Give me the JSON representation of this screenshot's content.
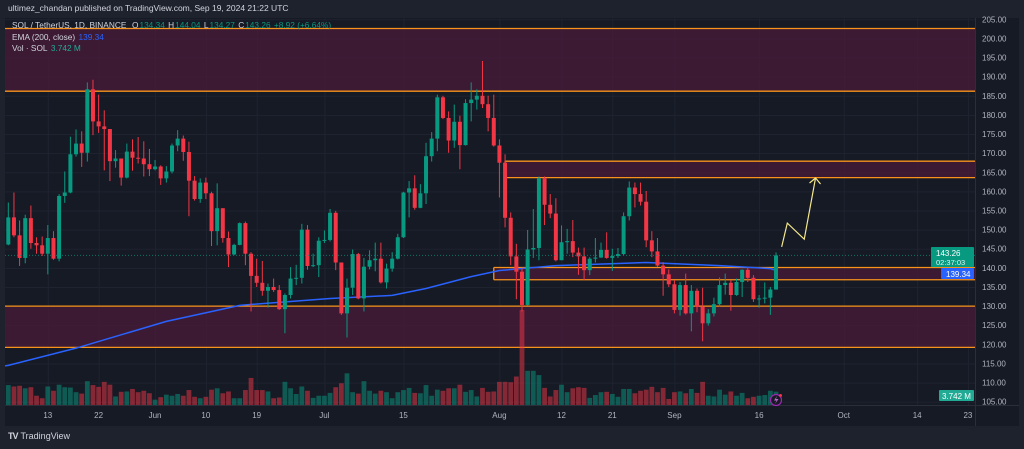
{
  "header": {
    "publisher_line": "ultimez_chandan published on TradingView.com, Sep 19, 2024 21:22 UTC"
  },
  "legend": {
    "symbol": "SOL / TetherUS, 1D, BINANCE",
    "o_label": "O",
    "o": "134.34",
    "h_label": "H",
    "h": "144.04",
    "l_label": "L",
    "l": "134.27",
    "c_label": "C",
    "c": "143.26",
    "change": "+8.92 (+6.64%)",
    "ema_label": "EMA (200, close)",
    "ema_value": "139.34",
    "vol_label": "Vol · SOL",
    "vol_value": "3.742 M"
  },
  "price_tags": {
    "last": "143.26",
    "countdown": "02:37:03",
    "ema": "139.34",
    "volume": "3.742 M"
  },
  "footer": {
    "logo_mark": "TV",
    "logo_text": "TradingView"
  },
  "icons": {
    "alert": "lightning-icon"
  },
  "colors": {
    "up": "#089981",
    "down": "#f23645",
    "ema": "#2962ff",
    "zone_border": "#f7931a",
    "zone_fill": "#4a1b3a",
    "projection": "#f5e88c",
    "background": "#161a25"
  },
  "chart_data": {
    "type": "candlestick",
    "interval": "1D",
    "ylim": [
      103,
      206
    ],
    "grid": true,
    "y_ticks": [
      205,
      200,
      195,
      190,
      185,
      180,
      175,
      170,
      165,
      160,
      155,
      150,
      145,
      140,
      135,
      130,
      125,
      120,
      115,
      110,
      105
    ],
    "y_tick_labels": [
      "205.00",
      "200.00",
      "195.00",
      "190.00",
      "185.00",
      "180.00",
      "175.00",
      "170.00",
      "165.00",
      "160.00",
      "155.00",
      "150.00",
      "145.00",
      "140.00",
      "135.00",
      "130.00",
      "125.00",
      "120.00",
      "115.00",
      "110.00",
      "105.00"
    ],
    "x_ticks": [
      {
        "label": "13",
        "date": "2024-05-13"
      },
      {
        "label": "22",
        "date": "2024-05-22"
      },
      {
        "label": "Jun",
        "date": "2024-06-01"
      },
      {
        "label": "10",
        "date": "2024-06-10"
      },
      {
        "label": "19",
        "date": "2024-06-19"
      },
      {
        "label": "Jul",
        "date": "2024-07-01"
      },
      {
        "label": "15",
        "date": "2024-07-15"
      },
      {
        "label": "Aug",
        "date": "2024-08-01"
      },
      {
        "label": "12",
        "date": "2024-08-12"
      },
      {
        "label": "21",
        "date": "2024-08-21"
      },
      {
        "label": "Sep",
        "date": "2024-09-01"
      },
      {
        "label": "16",
        "date": "2024-09-16"
      },
      {
        "label": "Oct",
        "date": "2024-10-01"
      },
      {
        "label": "14",
        "date": "2024-10-14"
      },
      {
        "label": "23",
        "date": "2024-10-23"
      }
    ],
    "candle_fields": [
      "date",
      "open",
      "high",
      "low",
      "close",
      "volume_m"
    ],
    "candles": [
      [
        "2024-05-06",
        146.1,
        157.1,
        145.9,
        153.2,
        5.6
      ],
      [
        "2024-05-07",
        153.2,
        159.7,
        148.0,
        148.5,
        5.2
      ],
      [
        "2024-05-08",
        148.5,
        152.4,
        140.5,
        142.6,
        5.4
      ],
      [
        "2024-05-09",
        142.6,
        153.9,
        141.2,
        153.0,
        4.7
      ],
      [
        "2024-05-10",
        153.0,
        156.3,
        145.0,
        146.5,
        5.0
      ],
      [
        "2024-05-11",
        146.5,
        148.0,
        143.7,
        145.9,
        2.6
      ],
      [
        "2024-05-12",
        145.9,
        148.2,
        143.1,
        143.7,
        1.9
      ],
      [
        "2024-05-13",
        143.7,
        151.2,
        138.3,
        147.8,
        5.2
      ],
      [
        "2024-05-14",
        147.8,
        149.6,
        142.1,
        142.4,
        4.0
      ],
      [
        "2024-05-15",
        142.4,
        159.3,
        141.7,
        158.8,
        5.7
      ],
      [
        "2024-05-16",
        158.8,
        165.2,
        157.0,
        159.7,
        5.0
      ],
      [
        "2024-05-17",
        159.7,
        174.3,
        159.5,
        169.7,
        4.9
      ],
      [
        "2024-05-18",
        169.7,
        176.2,
        169.1,
        172.5,
        3.6
      ],
      [
        "2024-05-19",
        172.5,
        175.7,
        166.4,
        170.1,
        3.2
      ],
      [
        "2024-05-20",
        170.1,
        188.5,
        167.8,
        186.7,
        6.7
      ],
      [
        "2024-05-21",
        186.7,
        189.2,
        174.7,
        178.3,
        5.6
      ],
      [
        "2024-05-22",
        178.3,
        185.3,
        175.3,
        177.0,
        5.1
      ],
      [
        "2024-05-23",
        177.0,
        181.2,
        165.5,
        176.3,
        6.5
      ],
      [
        "2024-05-24",
        176.3,
        176.3,
        162.7,
        167.9,
        5.7
      ],
      [
        "2024-05-25",
        167.9,
        170.8,
        166.2,
        168.6,
        2.4
      ],
      [
        "2024-05-26",
        168.6,
        168.6,
        161.5,
        163.6,
        3.7
      ],
      [
        "2024-05-27",
        163.6,
        172.5,
        163.4,
        170.4,
        3.8
      ],
      [
        "2024-05-28",
        170.4,
        173.6,
        165.4,
        168.8,
        4.5
      ],
      [
        "2024-05-29",
        168.8,
        174.2,
        167.3,
        168.6,
        3.6
      ],
      [
        "2024-05-30",
        168.6,
        173.1,
        163.9,
        167.1,
        4.0
      ],
      [
        "2024-05-31",
        167.1,
        171.1,
        164.0,
        165.8,
        3.3
      ],
      [
        "2024-06-01",
        165.8,
        168.2,
        165.5,
        166.5,
        1.5
      ],
      [
        "2024-06-02",
        166.5,
        166.8,
        161.7,
        163.4,
        2.2
      ],
      [
        "2024-06-03",
        163.4,
        166.6,
        162.3,
        165.2,
        2.9
      ],
      [
        "2024-06-04",
        165.2,
        172.5,
        164.7,
        172.0,
        2.6
      ],
      [
        "2024-06-05",
        172.0,
        176.0,
        170.5,
        173.8,
        3.1
      ],
      [
        "2024-06-06",
        173.8,
        174.6,
        168.0,
        170.3,
        2.6
      ],
      [
        "2024-06-07",
        170.3,
        173.0,
        153.5,
        162.8,
        4.2
      ],
      [
        "2024-06-08",
        162.8,
        164.0,
        157.6,
        158.0,
        2.3
      ],
      [
        "2024-06-09",
        158.0,
        163.4,
        157.0,
        162.3,
        1.9
      ],
      [
        "2024-06-10",
        162.3,
        163.6,
        158.0,
        159.5,
        2.3
      ],
      [
        "2024-06-11",
        159.5,
        159.9,
        145.7,
        149.6,
        4.3
      ],
      [
        "2024-06-12",
        149.6,
        162.1,
        145.9,
        155.6,
        4.7
      ],
      [
        "2024-06-13",
        155.6,
        155.6,
        146.6,
        147.8,
        3.3
      ],
      [
        "2024-06-14",
        147.8,
        149.5,
        140.2,
        143.5,
        3.8
      ],
      [
        "2024-06-15",
        143.5,
        146.3,
        143.3,
        146.0,
        1.9
      ],
      [
        "2024-06-16",
        146.0,
        151.9,
        145.9,
        151.7,
        1.9
      ],
      [
        "2024-06-17",
        151.7,
        152.1,
        140.7,
        143.7,
        4.2
      ],
      [
        "2024-06-18",
        143.7,
        144.1,
        128.6,
        137.9,
        7.6
      ],
      [
        "2024-06-19",
        137.9,
        142.4,
        135.0,
        136.1,
        4.2
      ],
      [
        "2024-06-20",
        136.1,
        141.8,
        132.7,
        134.0,
        4.2
      ],
      [
        "2024-06-21",
        134.0,
        135.9,
        129.6,
        135.0,
        3.8
      ],
      [
        "2024-06-22",
        135.0,
        137.2,
        133.7,
        134.2,
        1.9
      ],
      [
        "2024-06-23",
        134.2,
        135.5,
        129.0,
        129.2,
        2.1
      ],
      [
        "2024-06-24",
        129.2,
        133.3,
        122.9,
        132.9,
        6.5
      ],
      [
        "2024-06-25",
        132.9,
        140.2,
        132.0,
        137.2,
        4.7
      ],
      [
        "2024-06-26",
        137.2,
        140.8,
        135.5,
        137.4,
        3.1
      ],
      [
        "2024-06-27",
        137.4,
        151.5,
        135.9,
        150.0,
        5.2
      ],
      [
        "2024-06-28",
        150.0,
        151.2,
        139.5,
        140.5,
        4.0
      ],
      [
        "2024-06-29",
        140.5,
        143.7,
        140.2,
        140.7,
        2.0
      ],
      [
        "2024-06-30",
        140.7,
        148.0,
        137.6,
        147.1,
        2.6
      ],
      [
        "2024-07-01",
        147.1,
        149.8,
        146.5,
        147.3,
        2.6
      ],
      [
        "2024-07-02",
        147.3,
        155.4,
        146.9,
        154.4,
        3.4
      ],
      [
        "2024-07-03",
        154.4,
        154.9,
        139.4,
        141.4,
        5.0
      ],
      [
        "2024-07-04",
        141.4,
        141.4,
        127.7,
        128.1,
        6.1
      ],
      [
        "2024-07-05",
        128.1,
        137.2,
        121.8,
        134.8,
        8.9
      ],
      [
        "2024-07-06",
        134.8,
        144.8,
        132.9,
        143.6,
        3.6
      ],
      [
        "2024-07-07",
        143.6,
        143.9,
        131.8,
        132.0,
        3.2
      ],
      [
        "2024-07-08",
        132.0,
        142.6,
        128.6,
        140.3,
        6.7
      ],
      [
        "2024-07-09",
        140.3,
        144.6,
        139.6,
        142.0,
        4.0
      ],
      [
        "2024-07-10",
        142.0,
        146.6,
        139.1,
        142.4,
        3.2
      ],
      [
        "2024-07-11",
        142.4,
        146.6,
        135.9,
        136.2,
        4.0
      ],
      [
        "2024-07-12",
        136.2,
        141.1,
        134.6,
        139.8,
        3.6
      ],
      [
        "2024-07-13",
        139.8,
        144.1,
        139.0,
        142.4,
        1.9
      ],
      [
        "2024-07-14",
        142.4,
        148.9,
        142.2,
        148.0,
        3.6
      ],
      [
        "2024-07-15",
        148.0,
        159.9,
        147.8,
        159.7,
        4.2
      ],
      [
        "2024-07-16",
        159.7,
        162.7,
        153.2,
        160.8,
        4.8
      ],
      [
        "2024-07-17",
        160.8,
        164.2,
        155.2,
        155.7,
        3.4
      ],
      [
        "2024-07-18",
        155.7,
        161.9,
        155.6,
        159.5,
        3.3
      ],
      [
        "2024-07-19",
        159.5,
        172.7,
        156.7,
        169.2,
        5.6
      ],
      [
        "2024-07-20",
        169.2,
        175.5,
        167.8,
        173.8,
        2.6
      ],
      [
        "2024-07-21",
        173.8,
        185.3,
        170.5,
        184.6,
        4.3
      ],
      [
        "2024-07-22",
        184.6,
        185.0,
        178.9,
        179.2,
        4.0
      ],
      [
        "2024-07-23",
        179.2,
        180.9,
        170.1,
        173.3,
        4.7
      ],
      [
        "2024-07-24",
        173.3,
        182.7,
        171.4,
        178.2,
        4.7
      ],
      [
        "2024-07-25",
        178.2,
        179.8,
        165.8,
        172.1,
        5.7
      ],
      [
        "2024-07-26",
        172.1,
        184.1,
        172.0,
        183.1,
        3.7
      ],
      [
        "2024-07-27",
        183.1,
        188.5,
        178.3,
        184.0,
        4.2
      ],
      [
        "2024-07-28",
        184.0,
        186.7,
        181.4,
        185.0,
        2.4
      ],
      [
        "2024-07-29",
        185.0,
        194.1,
        181.8,
        182.8,
        4.8
      ],
      [
        "2024-07-30",
        182.8,
        185.0,
        175.7,
        179.2,
        3.7
      ],
      [
        "2024-07-31",
        179.2,
        185.3,
        171.7,
        172.0,
        3.8
      ],
      [
        "2024-08-01",
        172.0,
        173.6,
        158.4,
        167.5,
        6.5
      ],
      [
        "2024-08-02",
        167.5,
        169.7,
        150.6,
        153.1,
        6.5
      ],
      [
        "2024-08-03",
        153.1,
        154.5,
        140.7,
        143.0,
        6.4
      ],
      [
        "2024-08-04",
        143.0,
        146.3,
        131.8,
        139.0,
        8.0
      ],
      [
        "2024-08-05",
        139.0,
        140.0,
        128.6,
        130.3,
        26.7
      ],
      [
        "2024-08-06",
        130.3,
        149.9,
        130.1,
        144.8,
        9.6
      ],
      [
        "2024-08-07",
        144.8,
        155.4,
        142.6,
        145.2,
        9.6
      ],
      [
        "2024-08-08",
        145.2,
        163.9,
        142.0,
        163.4,
        8.4
      ],
      [
        "2024-08-09",
        163.4,
        163.9,
        151.2,
        156.5,
        4.8
      ],
      [
        "2024-08-10",
        156.5,
        159.3,
        153.0,
        154.2,
        2.4
      ],
      [
        "2024-08-11",
        154.2,
        158.2,
        141.7,
        142.0,
        4.2
      ],
      [
        "2024-08-12",
        142.0,
        151.1,
        142.0,
        146.7,
        5.7
      ],
      [
        "2024-08-13",
        146.7,
        150.2,
        143.7,
        147.0,
        3.6
      ],
      [
        "2024-08-14",
        147.0,
        152.5,
        142.8,
        144.0,
        4.7
      ],
      [
        "2024-08-15",
        144.0,
        145.3,
        138.2,
        143.0,
        5.0
      ],
      [
        "2024-08-16",
        143.0,
        145.3,
        136.8,
        139.4,
        4.8
      ],
      [
        "2024-08-17",
        139.4,
        142.8,
        138.1,
        142.4,
        2.0
      ],
      [
        "2024-08-18",
        142.4,
        147.8,
        141.4,
        142.7,
        2.8
      ],
      [
        "2024-08-19",
        142.7,
        146.6,
        142.6,
        144.7,
        3.6
      ],
      [
        "2024-08-20",
        144.7,
        149.3,
        142.4,
        142.6,
        3.7
      ],
      [
        "2024-08-21",
        142.6,
        145.0,
        139.2,
        143.1,
        3.1
      ],
      [
        "2024-08-22",
        143.1,
        145.2,
        142.6,
        143.6,
        2.3
      ],
      [
        "2024-08-23",
        143.6,
        154.5,
        143.3,
        153.5,
        4.5
      ],
      [
        "2024-08-24",
        153.5,
        162.6,
        152.4,
        161.0,
        4.5
      ],
      [
        "2024-08-25",
        161.0,
        162.3,
        155.8,
        159.3,
        3.3
      ],
      [
        "2024-08-26",
        159.3,
        162.3,
        156.3,
        157.3,
        4.0
      ],
      [
        "2024-08-27",
        157.3,
        160.1,
        145.4,
        147.2,
        4.3
      ],
      [
        "2024-08-28",
        147.2,
        149.6,
        142.8,
        144.3,
        5.1
      ],
      [
        "2024-08-29",
        144.3,
        147.8,
        140.2,
        140.6,
        3.6
      ],
      [
        "2024-08-30",
        140.6,
        141.5,
        132.7,
        138.3,
        4.8
      ],
      [
        "2024-08-31",
        138.3,
        139.6,
        135.0,
        135.7,
        1.7
      ],
      [
        "2024-09-01",
        135.7,
        136.8,
        128.1,
        129.0,
        3.6
      ],
      [
        "2024-09-02",
        129.0,
        136.3,
        127.5,
        135.5,
        3.8
      ],
      [
        "2024-09-03",
        135.5,
        138.5,
        127.8,
        128.1,
        3.3
      ],
      [
        "2024-09-04",
        128.1,
        135.5,
        123.4,
        134.0,
        4.5
      ],
      [
        "2024-09-05",
        134.0,
        134.6,
        128.4,
        129.8,
        3.4
      ],
      [
        "2024-09-06",
        129.8,
        134.8,
        120.8,
        125.5,
        6.5
      ],
      [
        "2024-09-07",
        125.5,
        129.2,
        124.9,
        128.1,
        2.6
      ],
      [
        "2024-09-08",
        128.1,
        132.2,
        127.3,
        130.5,
        2.4
      ],
      [
        "2024-09-09",
        130.5,
        137.5,
        129.8,
        135.5,
        4.3
      ],
      [
        "2024-09-10",
        135.5,
        138.5,
        133.0,
        136.1,
        2.9
      ],
      [
        "2024-09-11",
        136.1,
        136.8,
        128.8,
        132.9,
        3.8
      ],
      [
        "2024-09-12",
        132.9,
        137.2,
        132.7,
        136.3,
        2.6
      ],
      [
        "2024-09-13",
        136.3,
        139.6,
        132.4,
        139.5,
        3.4
      ],
      [
        "2024-09-14",
        139.5,
        140.0,
        136.3,
        137.4,
        1.9
      ],
      [
        "2024-09-15",
        137.4,
        138.1,
        131.1,
        131.8,
        2.3
      ],
      [
        "2024-09-16",
        131.8,
        132.9,
        129.6,
        132.0,
        2.6
      ],
      [
        "2024-09-17",
        132.0,
        136.2,
        130.7,
        132.2,
        2.8
      ],
      [
        "2024-09-18",
        132.2,
        135.0,
        127.7,
        134.34,
        4.0
      ],
      [
        "2024-09-19",
        134.34,
        144.04,
        134.27,
        143.26,
        3.742
      ]
    ],
    "ema_200": [
      [
        "2024-05-06",
        114.5
      ],
      [
        "2024-05-18",
        119.0
      ],
      [
        "2024-06-03",
        126.0
      ],
      [
        "2024-06-16",
        130.2
      ],
      [
        "2024-07-02",
        132.0
      ],
      [
        "2024-07-13",
        132.8
      ],
      [
        "2024-07-19",
        134.6
      ],
      [
        "2024-07-27",
        137.7
      ],
      [
        "2024-08-01",
        139.3
      ],
      [
        "2024-08-11",
        140.6
      ],
      [
        "2024-08-27",
        141.4
      ],
      [
        "2024-09-09",
        140.6
      ],
      [
        "2024-09-18",
        139.8
      ],
      [
        "2024-09-19",
        139.34
      ]
    ],
    "zones": [
      {
        "top": 202.6,
        "bottom": 186.2,
        "start": null
      },
      {
        "top": 167.9,
        "bottom": 163.6,
        "start": "2024-08-02"
      },
      {
        "top": 140.1,
        "bottom": 136.9,
        "start": "2024-07-31"
      },
      {
        "top": 130.0,
        "bottom": 119.2,
        "start": null
      }
    ],
    "projection": [
      [
        "2024-09-20",
        145.5
      ],
      [
        "2024-09-21",
        151.7
      ],
      [
        "2024-09-24",
        147.5
      ],
      [
        "2024-09-26",
        163.5
      ]
    ]
  }
}
